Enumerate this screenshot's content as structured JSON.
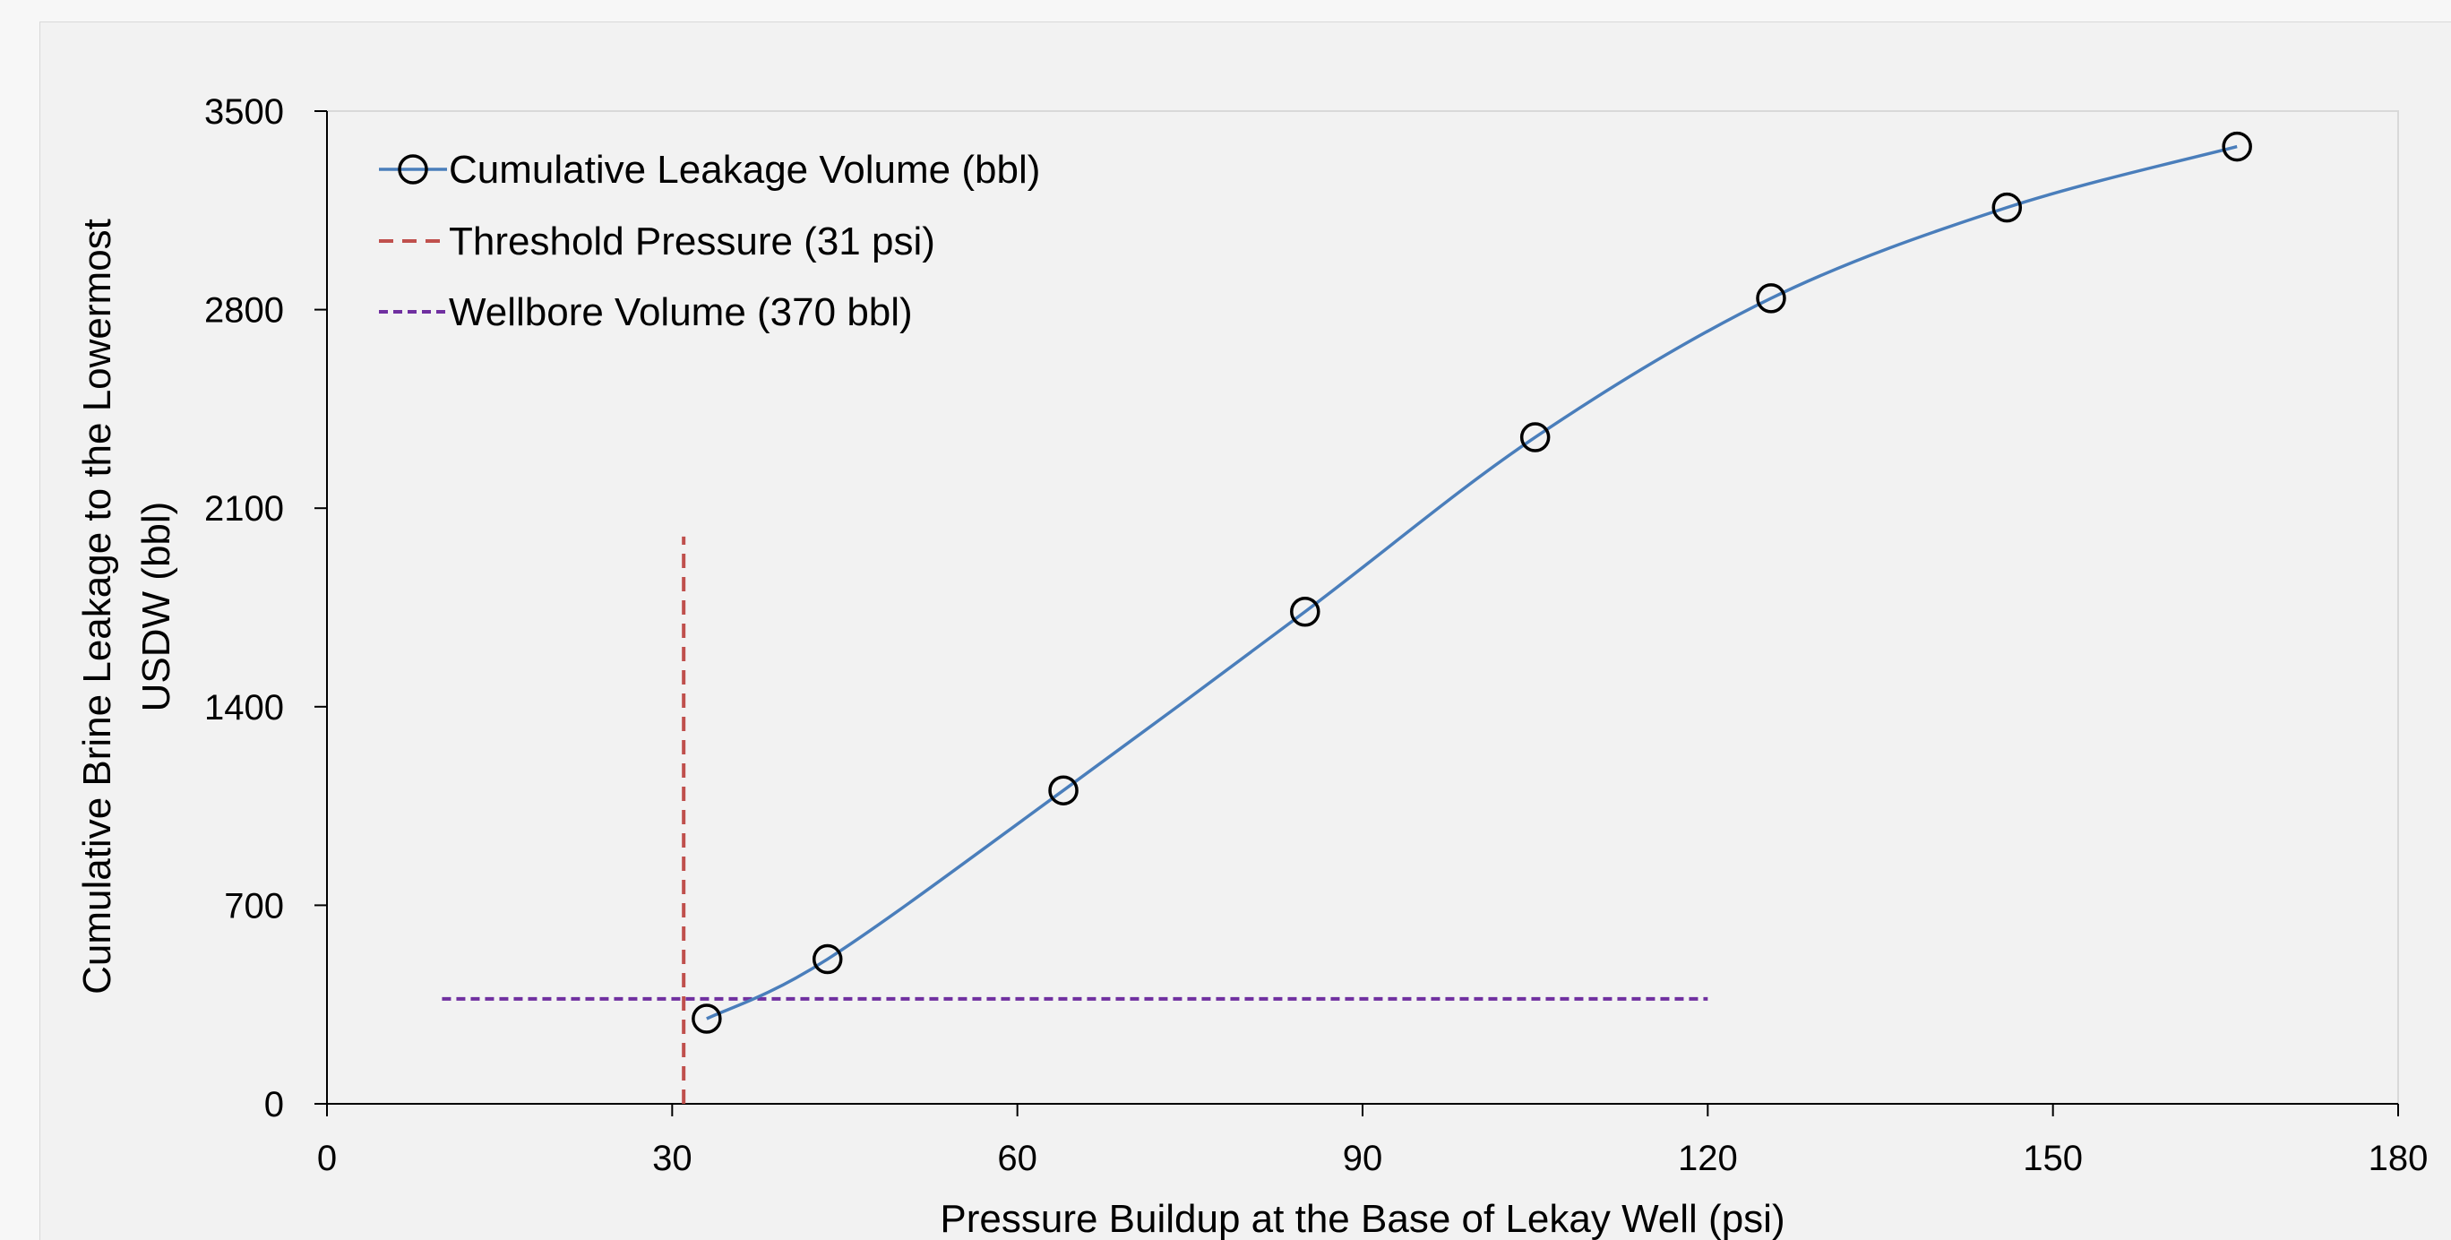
{
  "chart_data": {
    "type": "line",
    "xlabel": "Pressure Buildup at the Base of Lekay Well (psi)",
    "ylabel_line1": "Cumulative Brine Leakage to the  Lowermost",
    "ylabel_line2": "USDW (bbl)",
    "xlim": [
      0,
      180
    ],
    "ylim": [
      0,
      3500
    ],
    "xticks": [
      0,
      30,
      60,
      90,
      120,
      150,
      180
    ],
    "yticks": [
      0,
      700,
      1400,
      2100,
      2800,
      3500
    ],
    "grid": false,
    "legend_position": "top-left",
    "series": [
      {
        "name": "Cumulative Leakage Volume (bbl)",
        "color": "#4a7ebb",
        "marker": "circle",
        "x": [
          33,
          43.5,
          64,
          85,
          105,
          125.5,
          146,
          166
        ],
        "y": [
          300,
          510,
          1105,
          1735,
          2350,
          2840,
          3160,
          3375
        ]
      },
      {
        "name": "Threshold Pressure (31 psi)",
        "color": "#c0504d",
        "style": "dashed",
        "x": [
          31,
          31
        ],
        "y": [
          0,
          2000
        ]
      },
      {
        "name": "Wellbore Volume (370 bbl)",
        "color": "#7030a0",
        "style": "dashed",
        "x": [
          10,
          120
        ],
        "y": [
          370,
          370
        ]
      }
    ]
  }
}
